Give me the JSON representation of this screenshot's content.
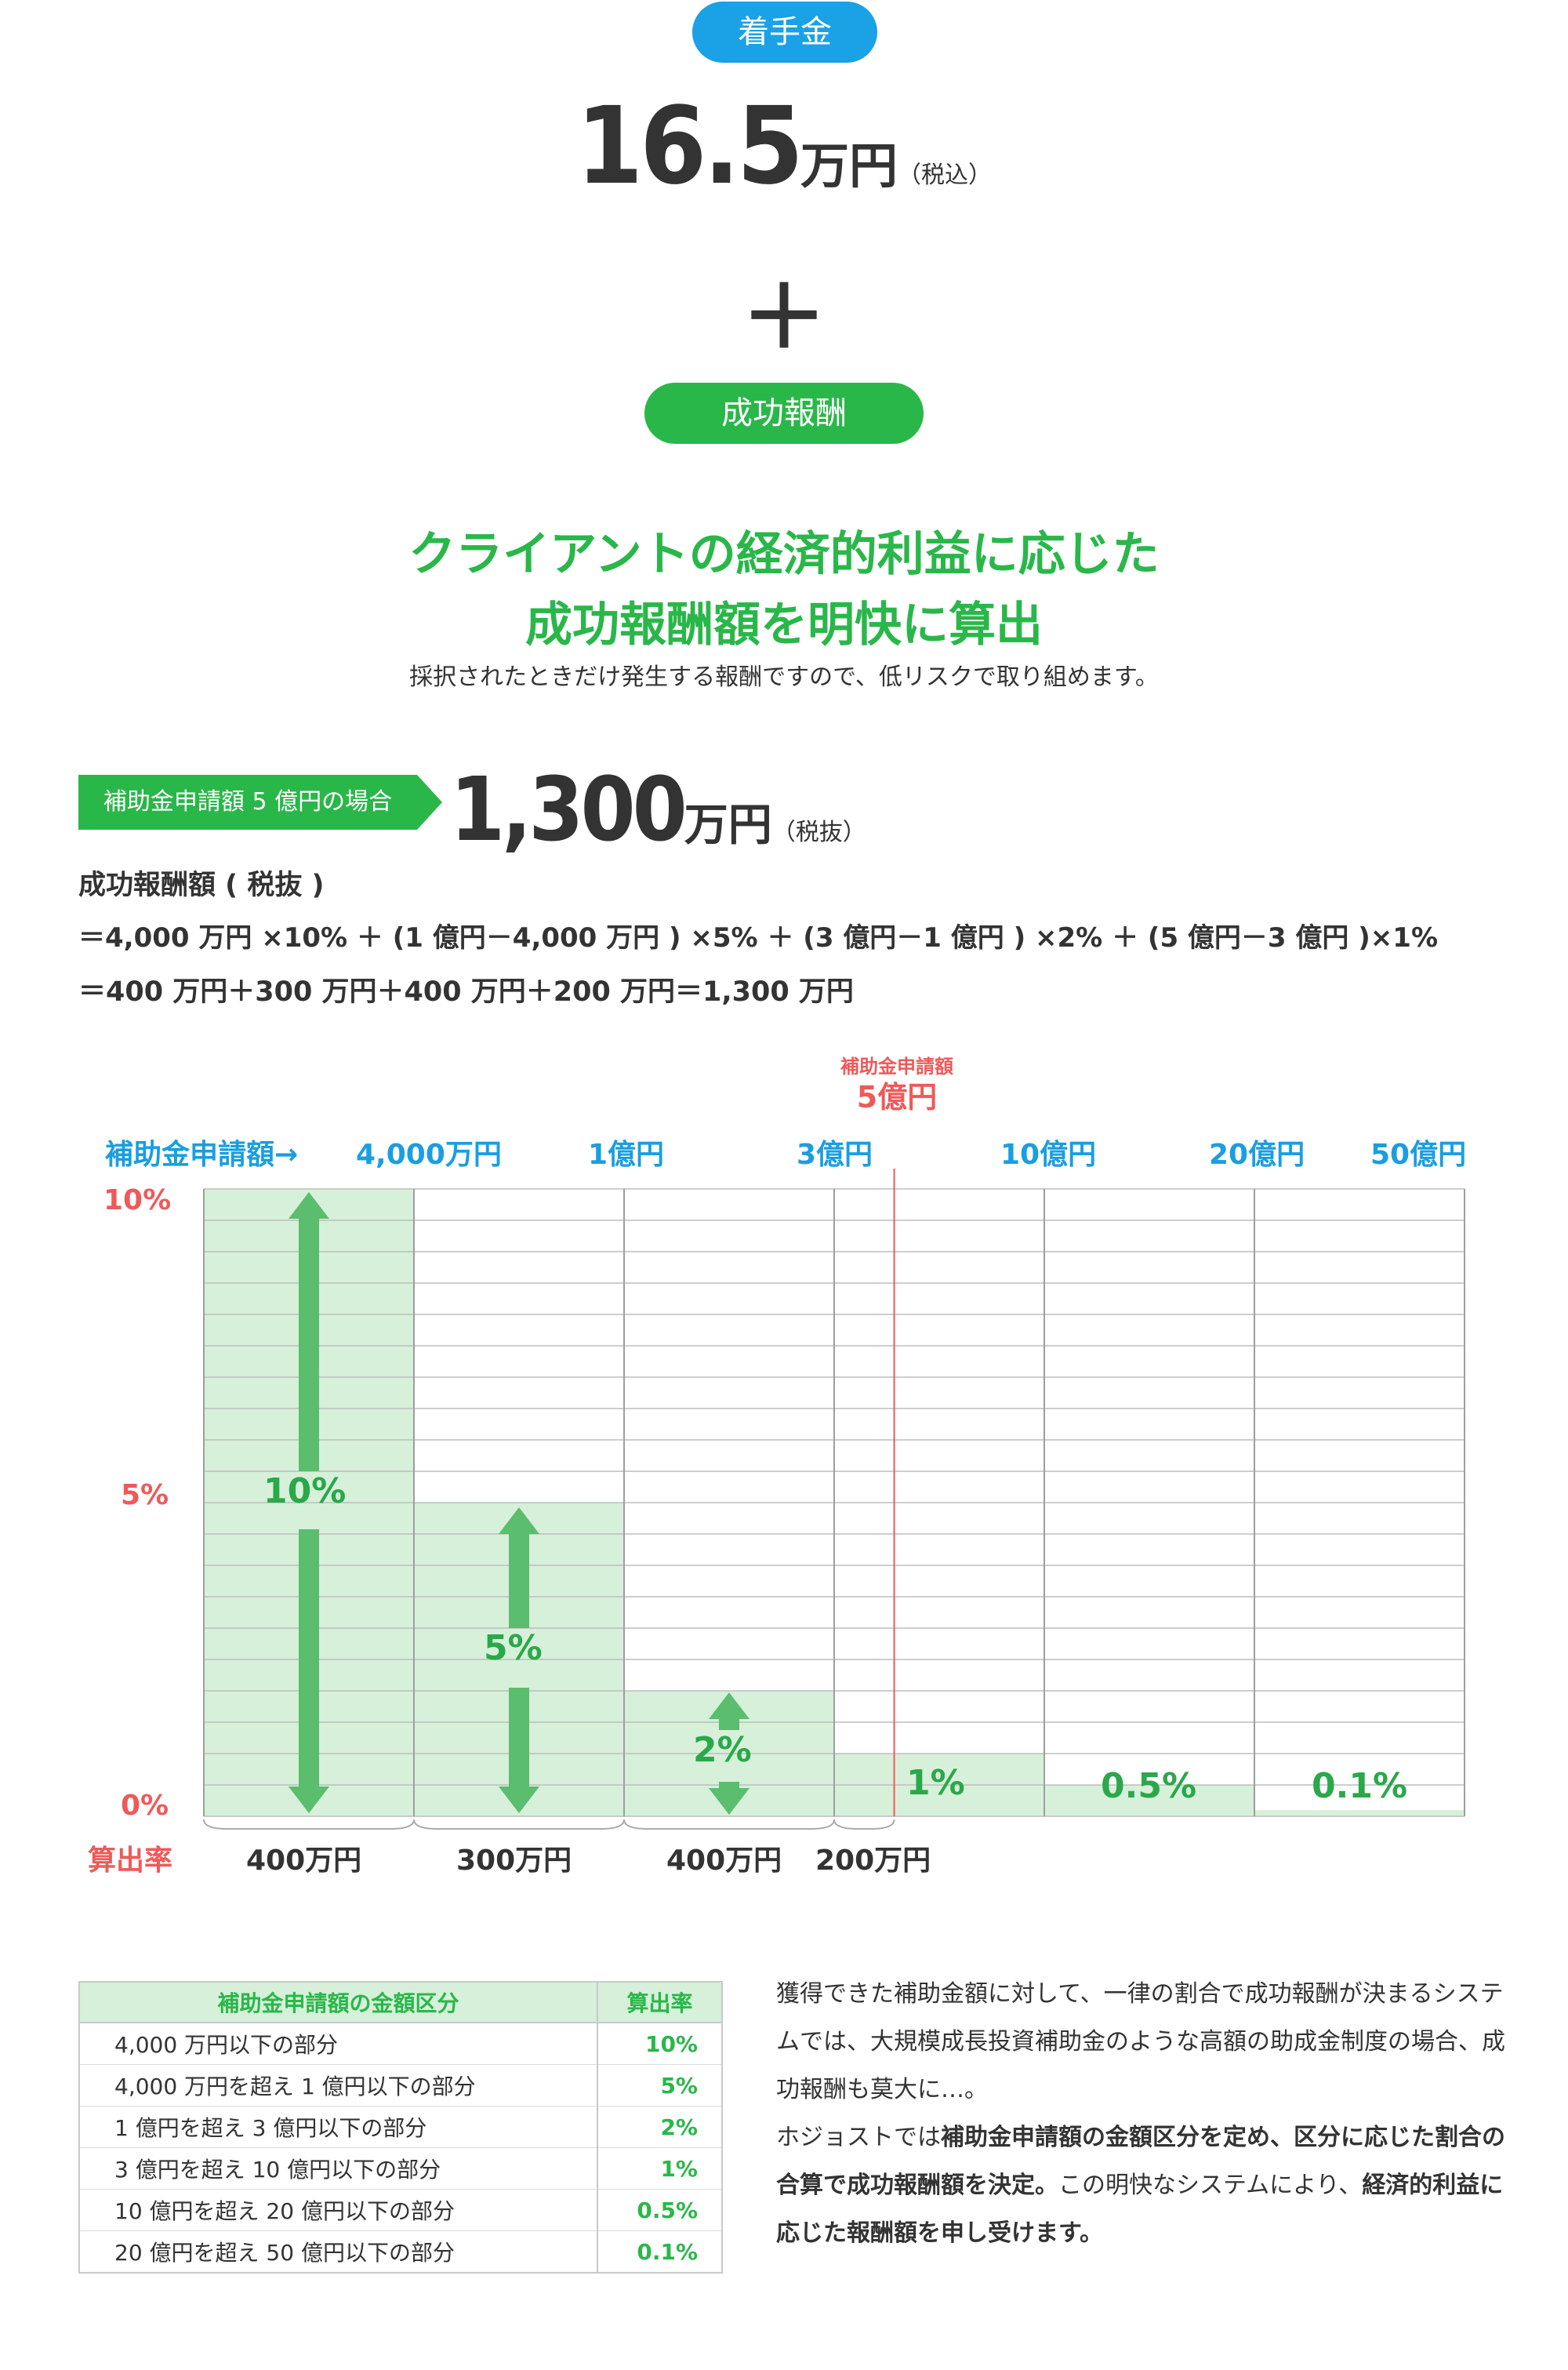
{
  "fee": {
    "label": "着手金",
    "amount": "16.5",
    "unit": "万円",
    "tax": "（税込）",
    "plus": "＋",
    "success_label": "成功報酬"
  },
  "headline": {
    "line1": "クライアントの経済的利益に応じた",
    "line2": "成功報酬額を明快に算出",
    "sub": "採択されたときだけ発生する報酬ですので、低リスクで取り組めます。"
  },
  "example": {
    "tag": "補助金申請額 5 億円の場合",
    "amount": "1,300",
    "unit": "万円",
    "tax": "（税抜）",
    "formula_title": "成功報酬額 ( 税抜 )",
    "formula_line1": "＝4,000 万円 ×10% ＋ (1 億円－4,000 万円 ) ×5% ＋ (3 億円－1 億円 ) ×2% ＋ (5 億円－3 億円 )×1%",
    "formula_line2": "＝400 万円＋300 万円＋400 万円＋200 万円＝1,300 万円"
  },
  "chart_data": {
    "type": "bar",
    "x_axis_label": "補助金申請額→",
    "y_axis_label": "算出率",
    "y_ticks": [
      "10%",
      "5%",
      "0%"
    ],
    "ylim": [
      0,
      10
    ],
    "categories": [
      "4,000万円",
      "1億円",
      "3億円",
      "10億円",
      "20億円",
      "50億円"
    ],
    "values": [
      10,
      5,
      2,
      1,
      0.5,
      0.1
    ],
    "value_labels": [
      "10%",
      "5%",
      "2%",
      "1%",
      "0.5%",
      "0.1%"
    ],
    "marker": {
      "label_top": "補助金申請額",
      "label_bottom": "5億円",
      "position": 5
    },
    "segment_amounts": [
      "400万円",
      "300万円",
      "400万円",
      "200万円"
    ],
    "colors": {
      "fill": "#d6f0da",
      "arrow": "#5bbd6e",
      "grid": "#bdbdbd",
      "marker": "#ee5a5a"
    }
  },
  "table": {
    "header_range": "補助金申請額の金額区分",
    "header_rate": "算出率",
    "rows": [
      {
        "range": "4,000 万円以下の部分",
        "rate": "10%"
      },
      {
        "range": "4,000 万円を超え 1 億円以下の部分",
        "rate": "5%"
      },
      {
        "range": "1 億円を超え 3 億円以下の部分",
        "rate": "2%"
      },
      {
        "range": "3 億円を超え 10 億円以下の部分",
        "rate": "1%"
      },
      {
        "range": "10 億円を超え 20 億円以下の部分",
        "rate": "0.5%"
      },
      {
        "range": "20 億円を超え 50 億円以下の部分",
        "rate": "0.1%"
      }
    ]
  },
  "description": {
    "p1": "獲得できた補助金額に対して、一律の割合で成功報酬が決まるシステムでは、大規模成長投資補助金のような高額の助成金制度の場合、成功報酬も莫大に…。",
    "p2_a": "ホジョストでは",
    "p2_b": "補助金申請額の金額区分を定め、区分に応じた割合の合算で成功報酬額を決定。",
    "p2_c": "この明快なシステムにより、",
    "p2_d": "経済的利益に応じた報酬額を申し受けます。"
  }
}
